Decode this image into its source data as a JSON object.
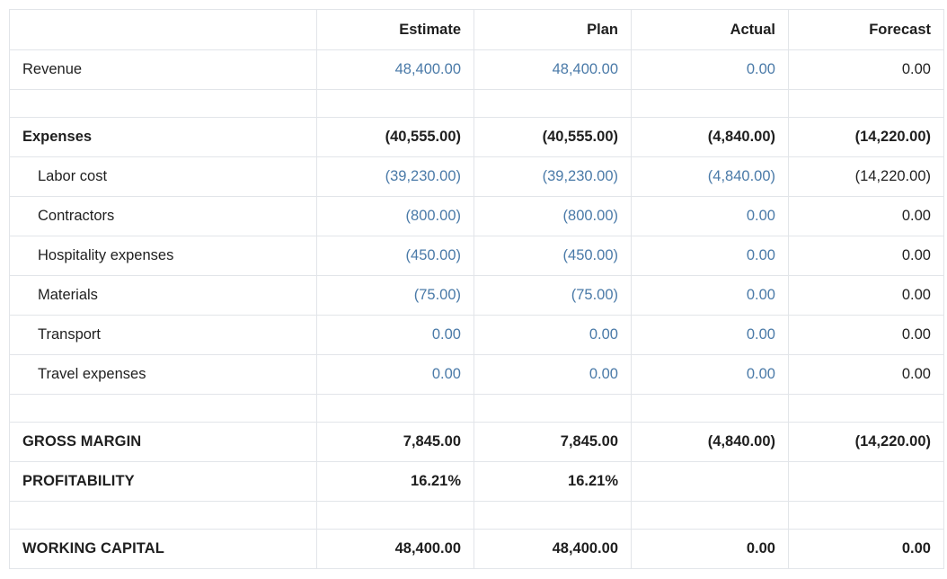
{
  "header": {
    "columns": [
      "",
      "Estimate",
      "Plan",
      "Actual",
      "Forecast"
    ]
  },
  "colors": {
    "link": "#4a7aa8",
    "text": "#1f1f1f",
    "border": "#e2e5e9"
  },
  "rows": {
    "revenue": {
      "label": "Revenue",
      "estimate": "48,400.00",
      "plan": "48,400.00",
      "actual": "0.00",
      "forecast": "0.00"
    },
    "expenses": {
      "label": "Expenses",
      "estimate": "(40,555.00)",
      "plan": "(40,555.00)",
      "actual": "(4,840.00)",
      "forecast": "(14,220.00)"
    },
    "labor_cost": {
      "label": "Labor cost",
      "estimate": "(39,230.00)",
      "plan": "(39,230.00)",
      "actual": "(4,840.00)",
      "forecast": "(14,220.00)"
    },
    "contractors": {
      "label": "Contractors",
      "estimate": "(800.00)",
      "plan": "(800.00)",
      "actual": "0.00",
      "forecast": "0.00"
    },
    "hospitality": {
      "label": "Hospitality expenses",
      "estimate": "(450.00)",
      "plan": "(450.00)",
      "actual": "0.00",
      "forecast": "0.00"
    },
    "materials": {
      "label": "Materials",
      "estimate": "(75.00)",
      "plan": "(75.00)",
      "actual": "0.00",
      "forecast": "0.00"
    },
    "transport": {
      "label": "Transport",
      "estimate": "0.00",
      "plan": "0.00",
      "actual": "0.00",
      "forecast": "0.00"
    },
    "travel": {
      "label": "Travel expenses",
      "estimate": "0.00",
      "plan": "0.00",
      "actual": "0.00",
      "forecast": "0.00"
    },
    "gross_margin": {
      "label": "GROSS MARGIN",
      "estimate": "7,845.00",
      "plan": "7,845.00",
      "actual": "(4,840.00)",
      "forecast": "(14,220.00)"
    },
    "profitability": {
      "label": "PROFITABILITY",
      "estimate": "16.21%",
      "plan": "16.21%",
      "actual": "",
      "forecast": ""
    },
    "working_capital": {
      "label": "WORKING CAPITAL",
      "estimate": "48,400.00",
      "plan": "48,400.00",
      "actual": "0.00",
      "forecast": "0.00"
    }
  }
}
